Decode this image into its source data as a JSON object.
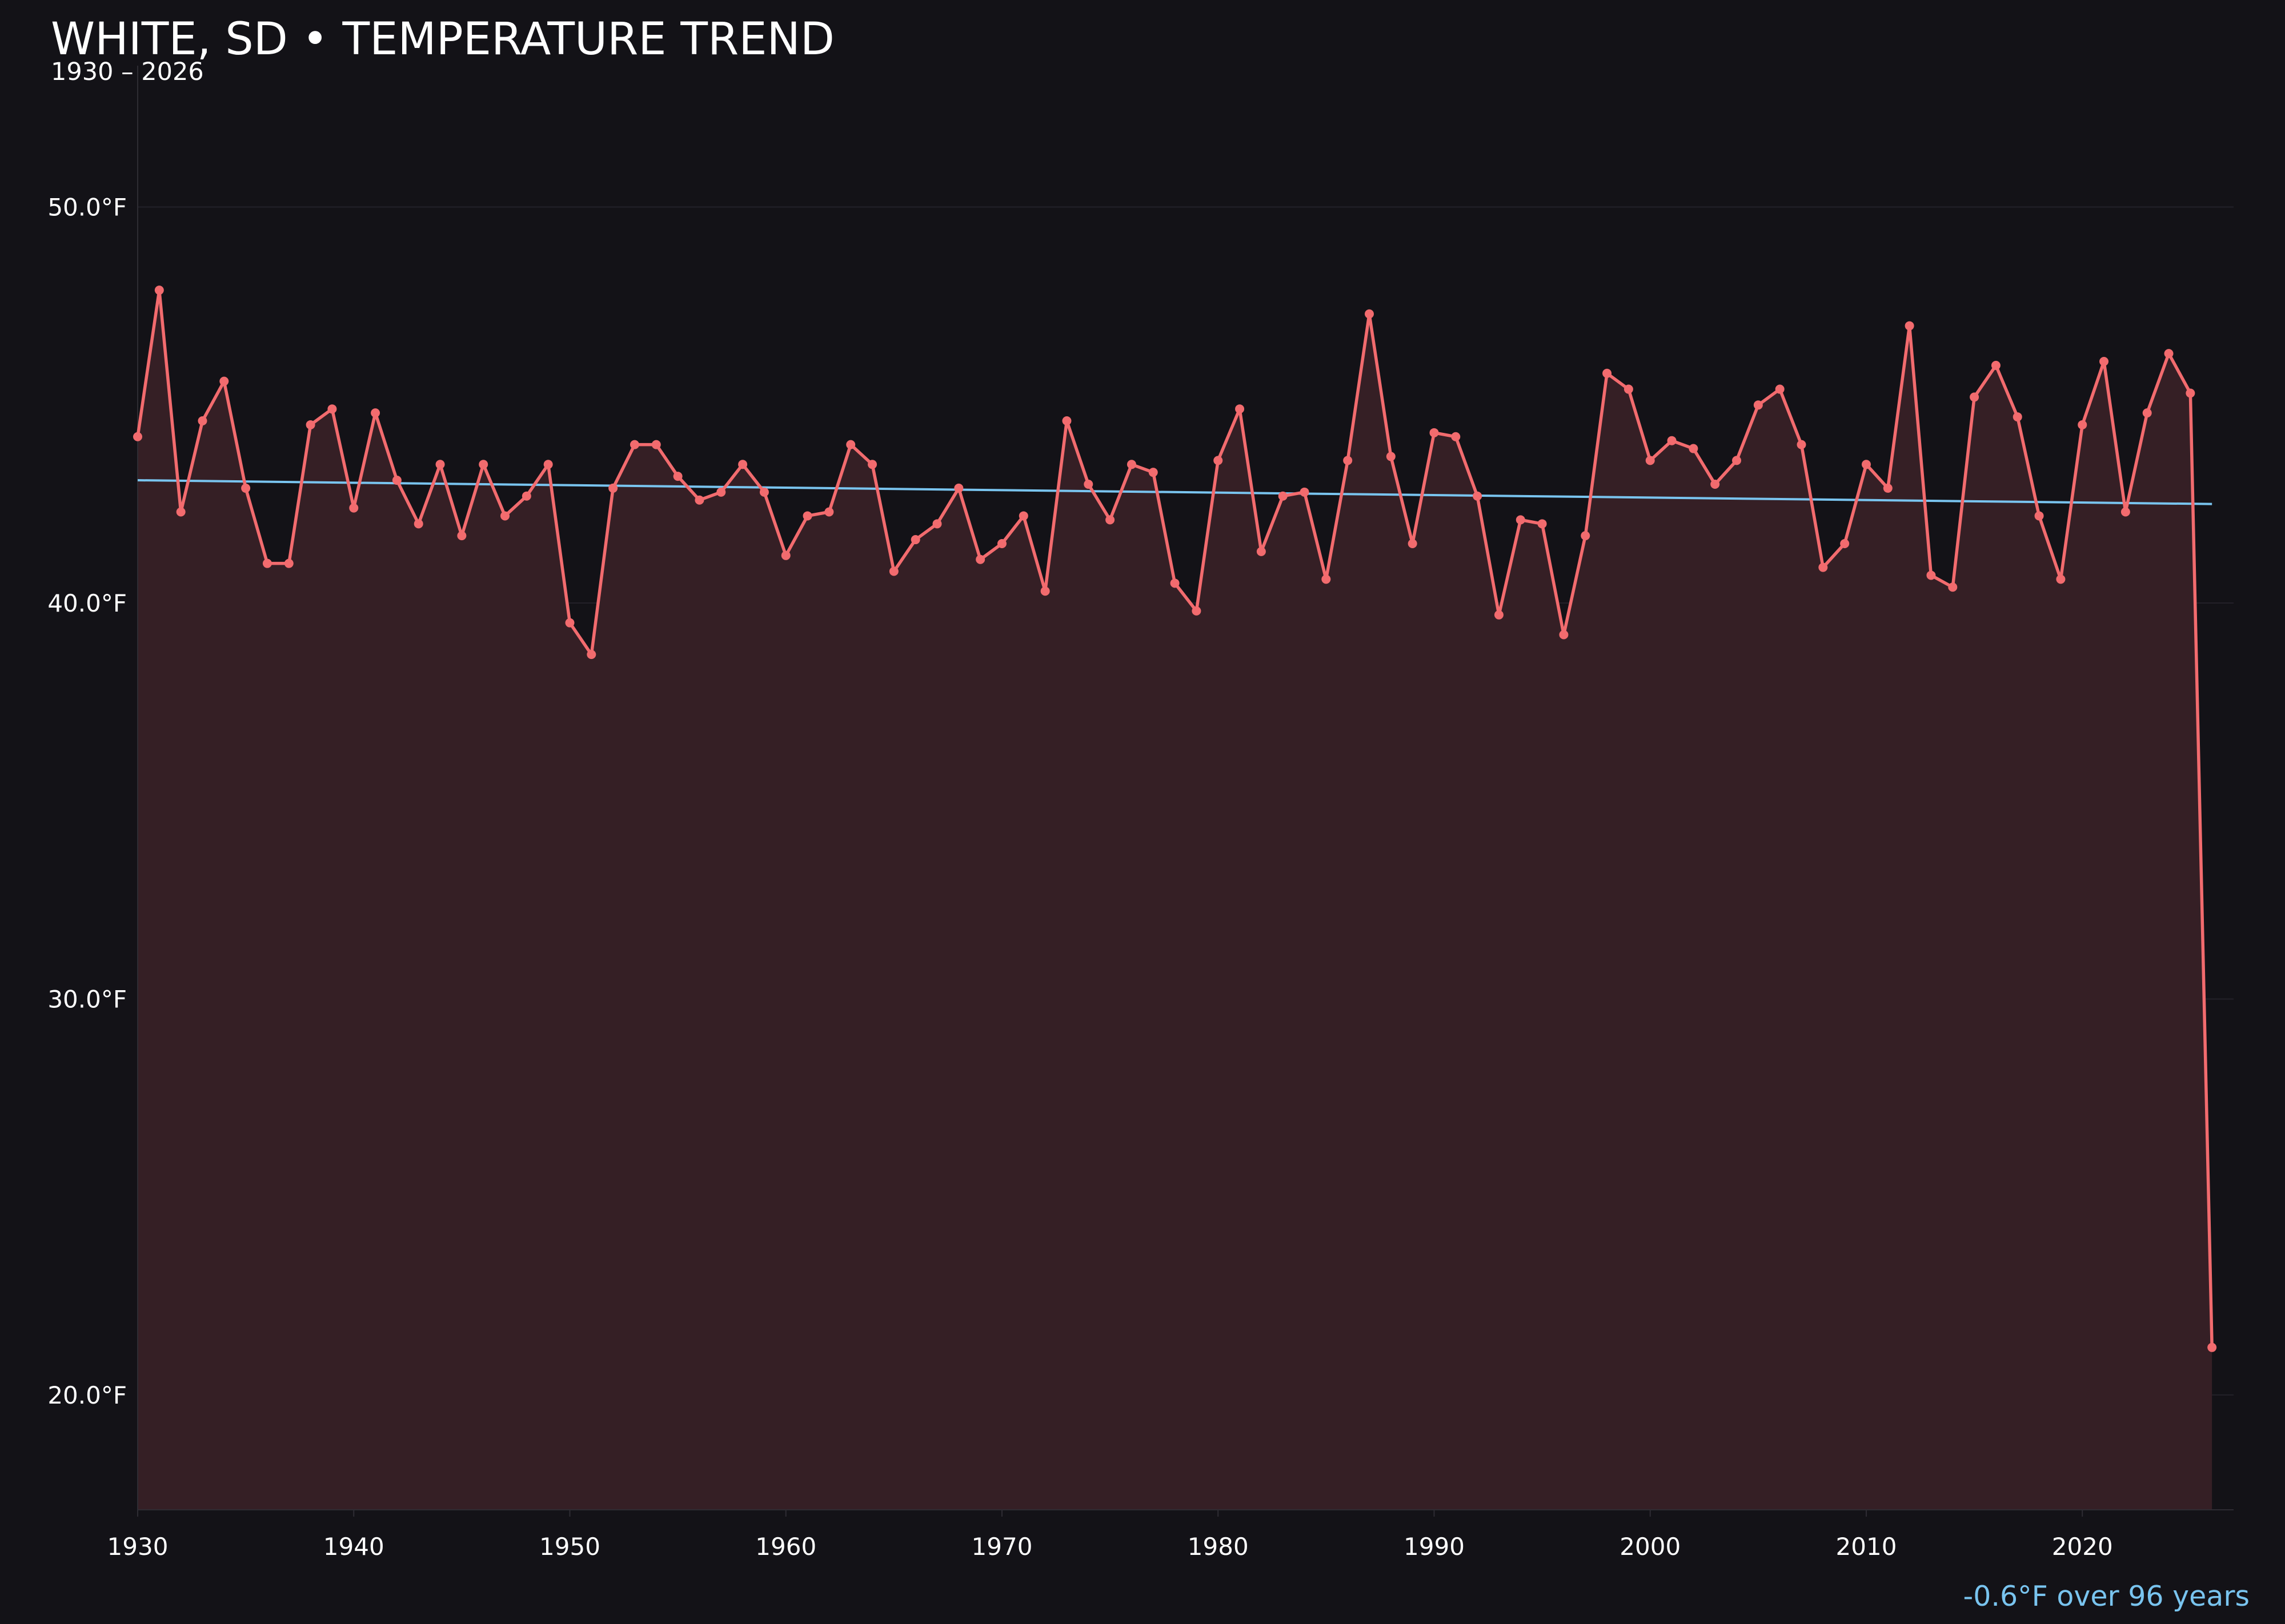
{
  "colors": {
    "background": "#131217",
    "series_line": "#f26b6e",
    "area_fill": "#351f25",
    "trend_line": "#79c4ef",
    "text": "#ffffff",
    "trend_text": "#79c4ef",
    "grid": "#232129",
    "axis": "#2e2c33"
  },
  "chart_data": {
    "type": "line",
    "title": "WHITE, SD • TEMPERATURE TREND",
    "subtitle": "1930 – 2026",
    "xlabel": "",
    "ylabel": "",
    "xlim": [
      1930,
      2027
    ],
    "ylim": [
      17.1,
      52.2
    ],
    "x_ticks": [
      1930,
      1940,
      1950,
      1960,
      1970,
      1980,
      1990,
      2000,
      2010,
      2020
    ],
    "y_ticks": [
      20,
      30,
      40,
      50
    ],
    "y_tick_labels": [
      "20.0°F",
      "30.0°F",
      "40.0°F",
      "50.0°F"
    ],
    "grid": true,
    "legend": "none",
    "area_fill": true,
    "series": [
      {
        "x": [
          1930,
          1931,
          1932,
          1933,
          1934,
          1935,
          1936,
          1937,
          1938,
          1939,
          1940,
          1941,
          1942,
          1943,
          1944,
          1945,
          1946,
          1947,
          1948,
          1949,
          1950,
          1951,
          1952,
          1953,
          1954,
          1955,
          1956,
          1957,
          1958,
          1959,
          1960,
          1961,
          1962,
          1963,
          1964,
          1965,
          1966,
          1967,
          1968,
          1969,
          1970,
          1971,
          1972,
          1973,
          1974,
          1975,
          1976,
          1977,
          1978,
          1979,
          1980,
          1981,
          1982,
          1983,
          1984,
          1985,
          1986,
          1987,
          1988,
          1989,
          1990,
          1991,
          1992,
          1993,
          1994,
          1995,
          1996,
          1997,
          1998,
          1999,
          2000,
          2001,
          2002,
          2003,
          2004,
          2005,
          2006,
          2007,
          2008,
          2009,
          2010,
          2011,
          2012,
          2013,
          2014,
          2015,
          2016,
          2017,
          2018,
          2019,
          2020,
          2021,
          2022,
          2023,
          2024,
          2025,
          2026
        ],
        "values": [
          44.2,
          47.9,
          42.3,
          44.6,
          45.6,
          42.9,
          41.0,
          41.0,
          44.5,
          44.9,
          42.4,
          44.8,
          43.1,
          42.0,
          43.5,
          41.7,
          43.5,
          42.2,
          42.7,
          43.5,
          39.5,
          38.7,
          42.9,
          44.0,
          44.0,
          43.2,
          42.6,
          42.8,
          43.5,
          42.8,
          41.2,
          42.2,
          42.3,
          44.0,
          43.5,
          40.8,
          41.6,
          42.0,
          42.9,
          41.1,
          41.5,
          42.2,
          40.3,
          44.6,
          43.0,
          42.1,
          43.5,
          43.3,
          40.5,
          39.8,
          43.6,
          44.9,
          41.3,
          42.7,
          42.8,
          40.6,
          43.6,
          47.3,
          43.7,
          41.5,
          44.3,
          44.2,
          42.7,
          39.7,
          42.1,
          42.0,
          39.2,
          41.7,
          45.8,
          45.4,
          43.6,
          44.1,
          43.9,
          43.0,
          43.6,
          45.0,
          45.4,
          44.0,
          40.9,
          41.5,
          43.5,
          42.9,
          47.0,
          40.7,
          40.4,
          45.2,
          46.0,
          44.7,
          42.2,
          40.6,
          44.5,
          46.1,
          42.3,
          44.8,
          46.3,
          45.3,
          21.2
        ]
      }
    ],
    "trend": {
      "start": [
        1930,
        43.1
      ],
      "end": [
        2026,
        42.5
      ]
    },
    "annotation": "-0.6°F over 96 years"
  }
}
